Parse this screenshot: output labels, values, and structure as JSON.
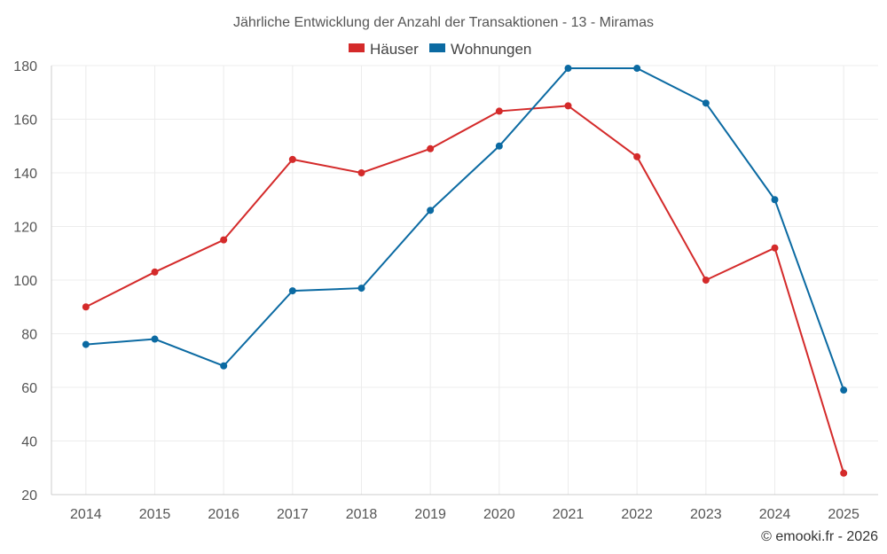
{
  "chart_data": {
    "type": "line",
    "title": "Jährliche Entwicklung der Anzahl der Transaktionen - 13 - Miramas",
    "categories": [
      "2014",
      "2015",
      "2016",
      "2017",
      "2018",
      "2019",
      "2020",
      "2021",
      "2022",
      "2023",
      "2024",
      "2025"
    ],
    "series": [
      {
        "name": "Häuser",
        "color": "#d42a2a",
        "values": [
          90,
          103,
          115,
          145,
          140,
          149,
          163,
          165,
          146,
          100,
          112,
          28
        ]
      },
      {
        "name": "Wohnungen",
        "color": "#0b6aa2",
        "values": [
          76,
          78,
          68,
          96,
          97,
          126,
          150,
          179,
          179,
          166,
          130,
          59
        ]
      }
    ],
    "y_ticks": [
      20,
      40,
      60,
      80,
      100,
      120,
      140,
      160,
      180
    ],
    "ylim": [
      20,
      180
    ],
    "xlabel": "",
    "ylabel": "",
    "grid": true,
    "legend_position": "top-center"
  },
  "credit": "© emooki.fr - 2026",
  "colors": {
    "grid": "#ececec",
    "axis": "#cccccc"
  }
}
